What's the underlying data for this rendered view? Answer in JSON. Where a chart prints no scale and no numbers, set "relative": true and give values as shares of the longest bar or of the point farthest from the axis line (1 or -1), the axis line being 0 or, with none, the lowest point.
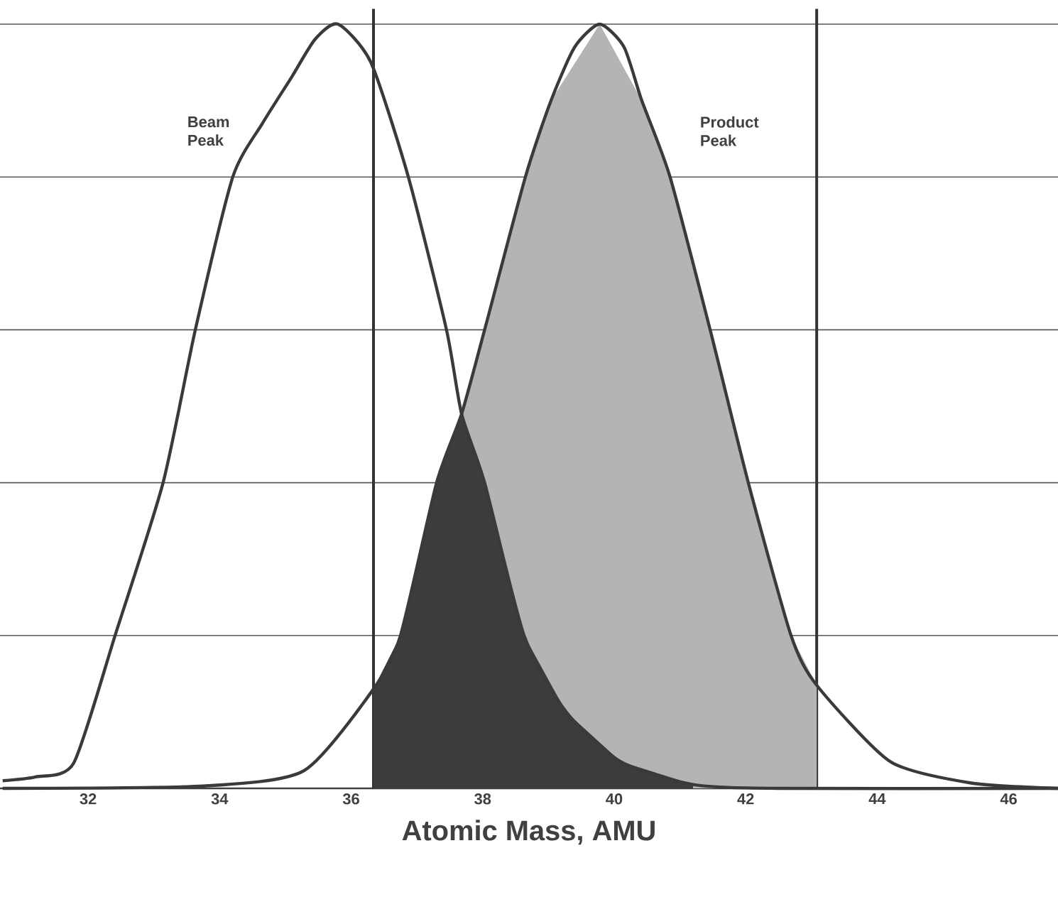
{
  "chart_data": {
    "type": "line",
    "relative": true,
    "xlabel": "Atomic Mass, AMU",
    "xlim": [
      30.66,
      46.75
    ],
    "xticks": [
      32,
      34,
      36,
      38,
      40,
      42,
      44,
      46
    ],
    "grid": "y",
    "marker": "none",
    "line_style": "solid",
    "ref_lines": [
      {
        "axis": "x",
        "value": 36.34,
        "color": "#333333"
      },
      {
        "axis": "x",
        "value": 43.08,
        "color": "#333333"
      }
    ],
    "series": [
      {
        "type": "area",
        "color": "#b4b4b4",
        "x": [
          36.34,
          36.75,
          37.3,
          37.68,
          38.03,
          38.65,
          39.04,
          39.78,
          40.42,
          40.85,
          41.46,
          42.04,
          42.69,
          43.08
        ],
        "values": [
          0.13,
          0.2,
          0.4,
          0.49,
          0.6,
          0.8,
          0.9,
          1.0,
          0.9,
          0.8,
          0.6,
          0.4,
          0.2,
          0.135
        ]
      },
      {
        "type": "area",
        "color": "#3c3c3c",
        "x": [
          36.34,
          36.75,
          37.3,
          37.68,
          38.03,
          38.63,
          39.27,
          40.1,
          41.2
        ],
        "values": [
          0.13,
          0.2,
          0.4,
          0.49,
          0.4,
          0.2,
          0.1,
          0.035,
          0.005
        ]
      },
      {
        "name": "Beam Peak",
        "color": "#3a3a3a",
        "x": [
          30.7,
          31.2,
          31.78,
          32.41,
          33.14,
          33.63,
          34.2,
          34.65,
          35.09,
          35.45,
          35.8,
          36.3,
          36.87,
          37.45,
          37.68,
          38.03,
          38.63,
          39.27,
          40.1,
          41.2,
          42.5,
          46.75
        ],
        "values": [
          0.01,
          0.015,
          0.033,
          0.2,
          0.4,
          0.6,
          0.8,
          0.87,
          0.93,
          0.98,
          1.0,
          0.95,
          0.8,
          0.6,
          0.49,
          0.4,
          0.2,
          0.1,
          0.035,
          0.005,
          0,
          0
        ]
      },
      {
        "name": "Product Peak",
        "color": "#3a3a3a",
        "x": [
          30.7,
          33.75,
          35.28,
          36.34,
          36.75,
          37.3,
          37.68,
          38.03,
          38.65,
          39.04,
          39.4,
          39.78,
          40.15,
          40.42,
          40.85,
          41.46,
          42.04,
          42.69,
          43.08,
          44.2,
          45.43,
          46.75
        ],
        "values": [
          0,
          0.003,
          0.023,
          0.13,
          0.2,
          0.4,
          0.49,
          0.6,
          0.8,
          0.9,
          0.97,
          1.0,
          0.97,
          0.9,
          0.8,
          0.6,
          0.4,
          0.2,
          0.135,
          0.035,
          0.007,
          0
        ]
      }
    ]
  }
}
